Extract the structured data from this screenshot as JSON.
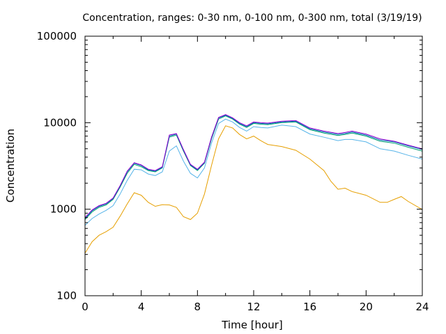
{
  "chart_data": {
    "type": "line",
    "title": "Concentration, ranges: 0-30 nm, 0-100 nm, 0-300 nm, total (3/19/19)",
    "xlabel": "Time [hour]",
    "ylabel": "Concentration",
    "xlim": [
      0,
      24
    ],
    "ylim": [
      100,
      100000
    ],
    "yscale": "log",
    "grid": false,
    "x_ticks": [
      0,
      4,
      8,
      12,
      16,
      20,
      24
    ],
    "x_tick_labels": [
      "0",
      "4",
      "8",
      "12",
      "16",
      "20",
      "24"
    ],
    "y_ticks": [
      100,
      1000,
      10000,
      100000
    ],
    "y_tick_labels": [
      "100",
      "1000",
      "10000",
      "100000"
    ],
    "series": [
      {
        "color": "#e69f00",
        "points": [
          [
            0,
            310
          ],
          [
            0.5,
            420
          ],
          [
            1,
            500
          ],
          [
            1.5,
            550
          ],
          [
            2,
            620
          ],
          [
            2.5,
            830
          ],
          [
            3,
            1150
          ],
          [
            3.5,
            1550
          ],
          [
            4,
            1450
          ],
          [
            4.5,
            1200
          ],
          [
            5,
            1080
          ],
          [
            5.5,
            1130
          ],
          [
            6,
            1120
          ],
          [
            6.5,
            1050
          ],
          [
            7,
            820
          ],
          [
            7.5,
            760
          ],
          [
            8,
            900
          ],
          [
            8.5,
            1500
          ],
          [
            9,
            3200
          ],
          [
            9.5,
            6500
          ],
          [
            10,
            9200
          ],
          [
            10.5,
            8700
          ],
          [
            11,
            7300
          ],
          [
            11.5,
            6500
          ],
          [
            12,
            7000
          ],
          [
            12.5,
            6200
          ],
          [
            13,
            5600
          ],
          [
            14,
            5300
          ],
          [
            15,
            4800
          ],
          [
            16,
            3800
          ],
          [
            17,
            2800
          ],
          [
            17.5,
            2100
          ],
          [
            18,
            1700
          ],
          [
            18.5,
            1750
          ],
          [
            19,
            1600
          ],
          [
            20,
            1450
          ],
          [
            21,
            1200
          ],
          [
            21.5,
            1200
          ],
          [
            22,
            1300
          ],
          [
            22.5,
            1400
          ],
          [
            23,
            1230
          ],
          [
            24,
            990
          ]
        ]
      },
      {
        "color": "#56b4e9",
        "points": [
          [
            0,
            650
          ],
          [
            0.5,
            780
          ],
          [
            1,
            880
          ],
          [
            1.5,
            970
          ],
          [
            2,
            1100
          ],
          [
            2.5,
            1500
          ],
          [
            3,
            2150
          ],
          [
            3.5,
            2900
          ],
          [
            4,
            2850
          ],
          [
            4.5,
            2550
          ],
          [
            5,
            2450
          ],
          [
            5.5,
            2700
          ],
          [
            6,
            4700
          ],
          [
            6.5,
            5400
          ],
          [
            7,
            3600
          ],
          [
            7.5,
            2600
          ],
          [
            8,
            2300
          ],
          [
            8.5,
            3000
          ],
          [
            9,
            5800
          ],
          [
            9.5,
            9800
          ],
          [
            10,
            11000
          ],
          [
            10.5,
            10200
          ],
          [
            11,
            8800
          ],
          [
            11.5,
            8000
          ],
          [
            12,
            9000
          ],
          [
            12.5,
            8800
          ],
          [
            13,
            8700
          ],
          [
            14,
            9400
          ],
          [
            15,
            9000
          ],
          [
            16,
            7400
          ],
          [
            17,
            6800
          ],
          [
            18,
            6200
          ],
          [
            18.5,
            6400
          ],
          [
            19,
            6400
          ],
          [
            20,
            6000
          ],
          [
            21,
            5000
          ],
          [
            22,
            4700
          ],
          [
            23,
            4200
          ],
          [
            24,
            3800
          ]
        ]
      },
      {
        "color": "#009e73",
        "points": [
          [
            0,
            760
          ],
          [
            0.5,
            930
          ],
          [
            1,
            1050
          ],
          [
            1.5,
            1120
          ],
          [
            2,
            1300
          ],
          [
            2.5,
            1800
          ],
          [
            3,
            2600
          ],
          [
            3.5,
            3300
          ],
          [
            4,
            3100
          ],
          [
            4.5,
            2800
          ],
          [
            5,
            2700
          ],
          [
            5.5,
            3000
          ],
          [
            6,
            6800
          ],
          [
            6.5,
            7200
          ],
          [
            7,
            4700
          ],
          [
            7.5,
            3200
          ],
          [
            8,
            2800
          ],
          [
            8.5,
            3400
          ],
          [
            9,
            6500
          ],
          [
            9.5,
            11000
          ],
          [
            10,
            12000
          ],
          [
            10.5,
            11000
          ],
          [
            11,
            9600
          ],
          [
            11.5,
            8800
          ],
          [
            12,
            9800
          ],
          [
            12.5,
            9600
          ],
          [
            13,
            9500
          ],
          [
            14,
            10000
          ],
          [
            15,
            10200
          ],
          [
            16,
            8300
          ],
          [
            17,
            7600
          ],
          [
            18,
            7100
          ],
          [
            18.5,
            7300
          ],
          [
            19,
            7600
          ],
          [
            20,
            7000
          ],
          [
            21,
            6100
          ],
          [
            22,
            5800
          ],
          [
            23,
            5200
          ],
          [
            24,
            4700
          ]
        ]
      },
      {
        "color": "#0072b2",
        "points": [
          [
            0,
            780
          ],
          [
            0.5,
            960
          ],
          [
            1,
            1080
          ],
          [
            1.5,
            1150
          ],
          [
            2,
            1330
          ],
          [
            2.5,
            1850
          ],
          [
            3,
            2700
          ],
          [
            3.5,
            3400
          ],
          [
            4,
            3200
          ],
          [
            4.5,
            2850
          ],
          [
            5,
            2750
          ],
          [
            5.5,
            3050
          ],
          [
            6,
            7000
          ],
          [
            6.5,
            7400
          ],
          [
            7,
            4800
          ],
          [
            7.5,
            3250
          ],
          [
            8,
            2850
          ],
          [
            8.5,
            3450
          ],
          [
            9,
            6700
          ],
          [
            9.5,
            11300
          ],
          [
            10,
            12200
          ],
          [
            10.5,
            11200
          ],
          [
            11,
            9800
          ],
          [
            11.5,
            9000
          ],
          [
            12,
            10000
          ],
          [
            12.5,
            9800
          ],
          [
            13,
            9700
          ],
          [
            14,
            10200
          ],
          [
            15,
            10400
          ],
          [
            16,
            8500
          ],
          [
            17,
            7800
          ],
          [
            18,
            7300
          ],
          [
            18.5,
            7500
          ],
          [
            19,
            7800
          ],
          [
            20,
            7200
          ],
          [
            21,
            6300
          ],
          [
            22,
            6000
          ],
          [
            23,
            5400
          ],
          [
            24,
            4900
          ]
        ]
      },
      {
        "color": "#9400d3",
        "points": [
          [
            0,
            800
          ],
          [
            0.5,
            980
          ],
          [
            1,
            1100
          ],
          [
            1.5,
            1170
          ],
          [
            2,
            1350
          ],
          [
            2.5,
            1880
          ],
          [
            3,
            2750
          ],
          [
            3.5,
            3450
          ],
          [
            4,
            3250
          ],
          [
            4.5,
            2900
          ],
          [
            5,
            2800
          ],
          [
            5.5,
            3100
          ],
          [
            6,
            7200
          ],
          [
            6.5,
            7500
          ],
          [
            7,
            4900
          ],
          [
            7.5,
            3300
          ],
          [
            8,
            2900
          ],
          [
            8.5,
            3500
          ],
          [
            9,
            6800
          ],
          [
            9.5,
            11500
          ],
          [
            10,
            12400
          ],
          [
            10.5,
            11400
          ],
          [
            11,
            10000
          ],
          [
            11.5,
            9200
          ],
          [
            12,
            10200
          ],
          [
            12.5,
            10000
          ],
          [
            13,
            9900
          ],
          [
            14,
            10400
          ],
          [
            15,
            10600
          ],
          [
            16,
            8700
          ],
          [
            17,
            8000
          ],
          [
            18,
            7500
          ],
          [
            18.5,
            7700
          ],
          [
            19,
            8000
          ],
          [
            20,
            7400
          ],
          [
            21,
            6500
          ],
          [
            22,
            6100
          ],
          [
            23,
            5500
          ],
          [
            24,
            5000
          ]
        ]
      }
    ]
  }
}
